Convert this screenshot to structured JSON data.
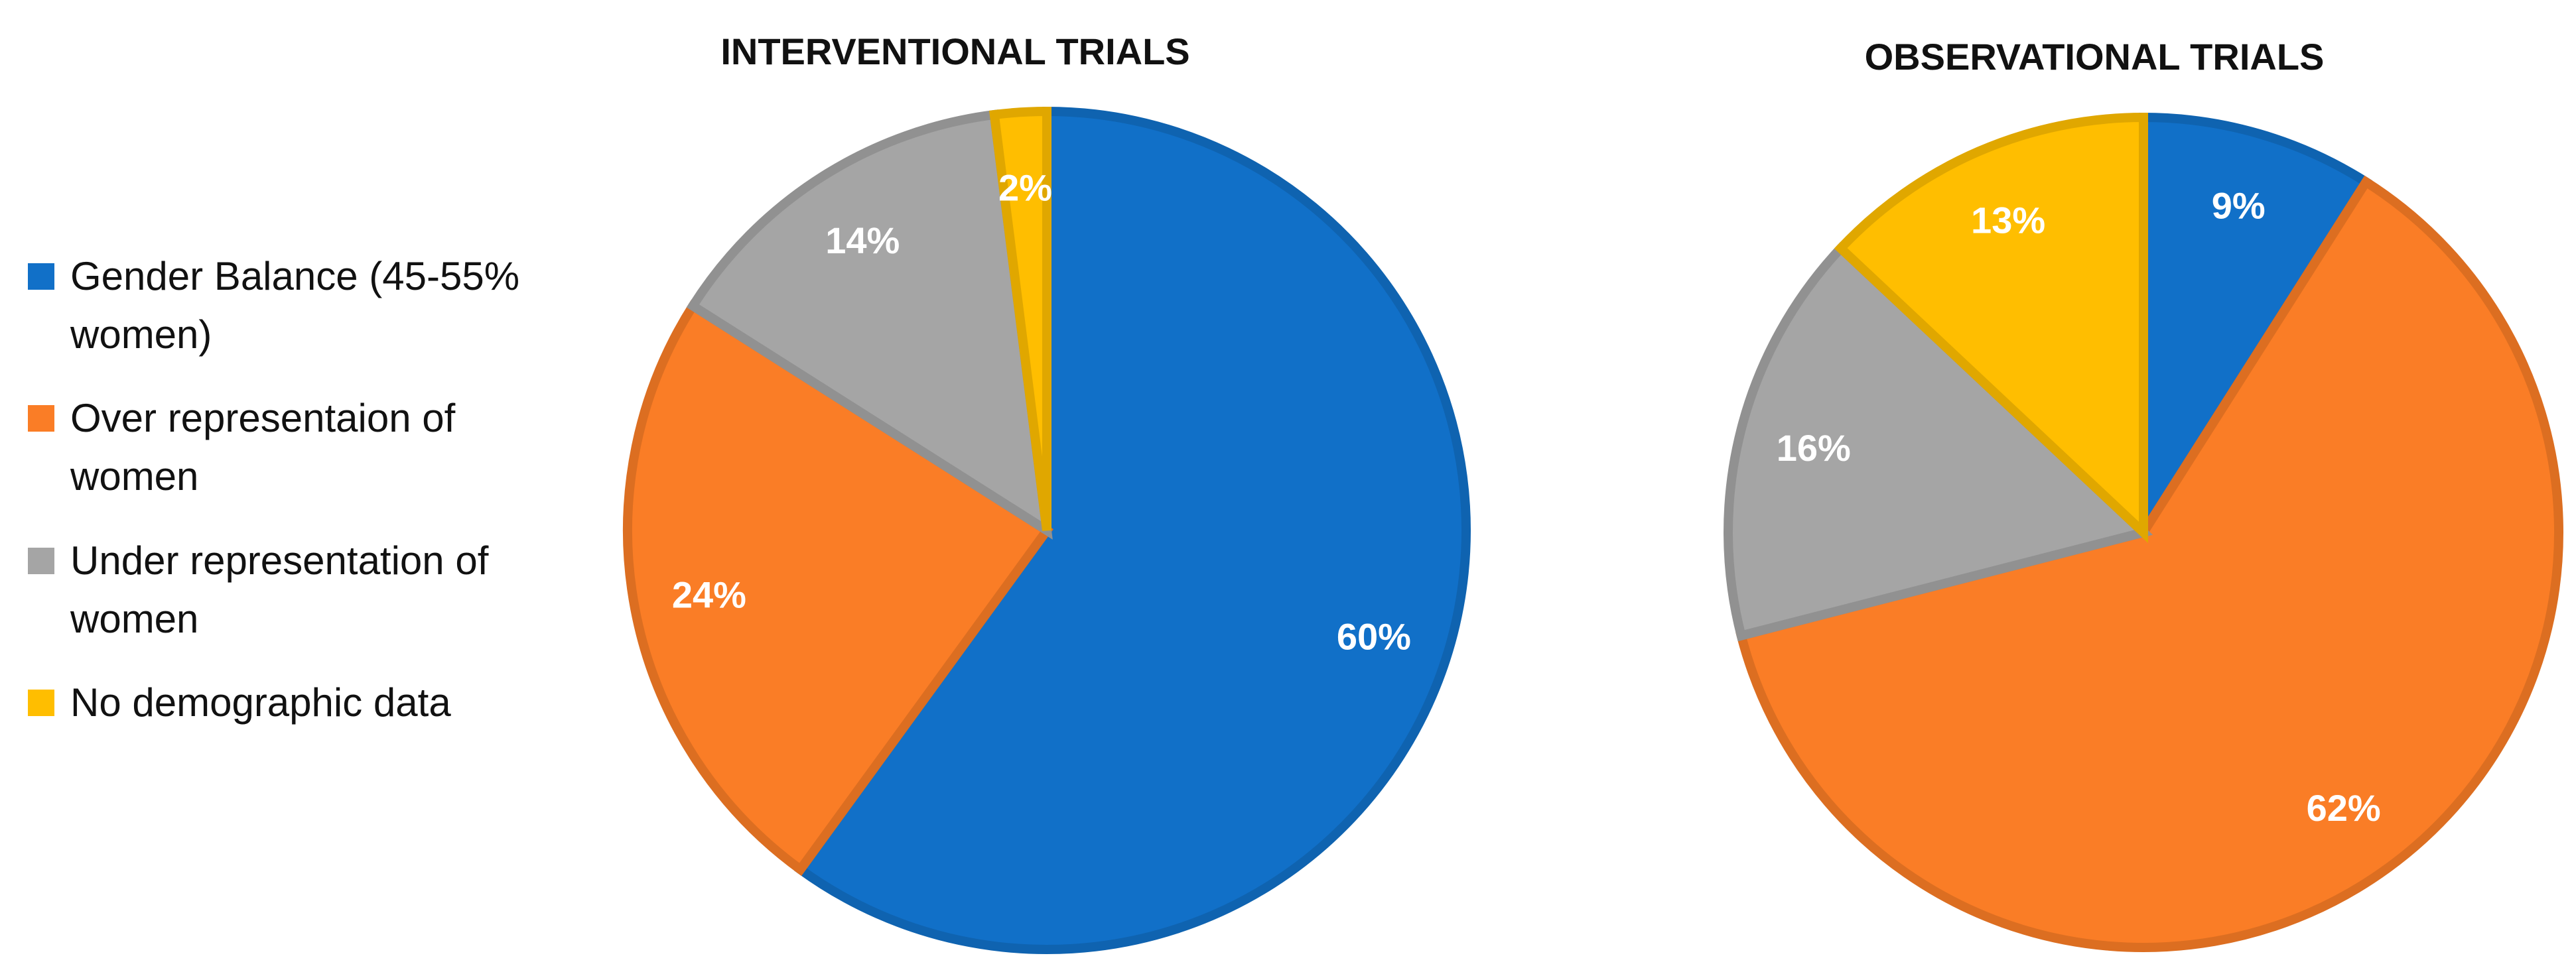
{
  "legend": [
    {
      "label_lines": [
        "Gender Balance (45-55%",
        "women)"
      ],
      "color": "#1170C8"
    },
    {
      "label_lines": [
        "Over representaion of",
        "women"
      ],
      "color": "#FA7D26"
    },
    {
      "label_lines": [
        "Under representation of",
        "women"
      ],
      "color": "#A5A5A5"
    },
    {
      "label_lines": [
        "No demographic data"
      ],
      "color": "#FFBE00"
    }
  ],
  "chart_data": [
    {
      "type": "pie",
      "title": "INTERVENTIONAL TRIALS",
      "labels": [
        "Gender Balance (45-55% women)",
        "Over representaion of women",
        "Under representation of women",
        "No demographic data"
      ],
      "values": [
        60,
        24,
        14,
        2
      ],
      "value_labels": [
        "60%",
        "24%",
        "14%",
        "2%"
      ],
      "colors": [
        "#1170C8",
        "#FA7D26",
        "#A5A5A5",
        "#FFBE00"
      ],
      "start_angle_deg": 0,
      "direction": "clockwise"
    },
    {
      "type": "pie",
      "title": "OBSERVATIONAL TRIALS",
      "labels": [
        "Gender Balance (45-55% women)",
        "Over representaion of women",
        "Under representation of women",
        "No demographic data"
      ],
      "values": [
        9,
        62,
        16,
        13
      ],
      "value_labels": [
        "9%",
        "62%",
        "16%",
        "13%"
      ],
      "colors": [
        "#1170C8",
        "#FA7D26",
        "#A5A5A5",
        "#FFBE00"
      ],
      "start_angle_deg": 0,
      "direction": "clockwise"
    }
  ]
}
